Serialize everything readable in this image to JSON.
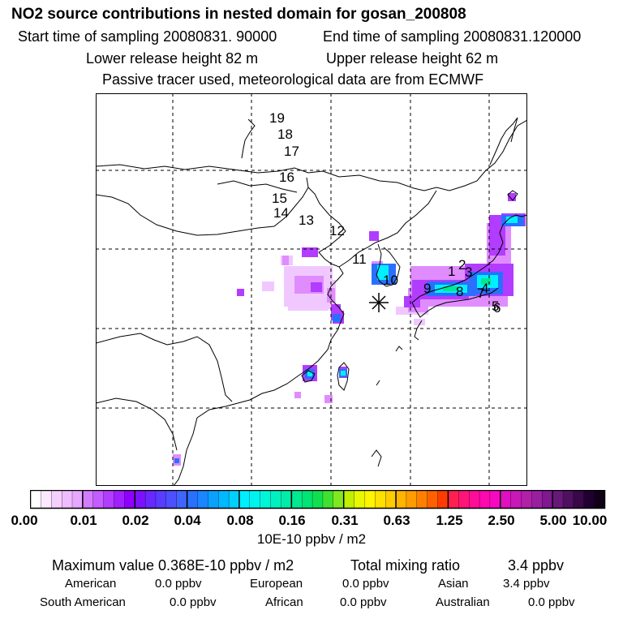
{
  "header": {
    "title": "NO2 source contributions in nested domain for gosan_200808",
    "start_time": "Start time of sampling 20080831. 90000",
    "end_time": "End time of sampling 20080831.120000",
    "lower_release": "Lower release height   82 m",
    "upper_release": "Upper release height   62 m",
    "tracer_note": "Passive tracer used, meteorological data are from ECMWF"
  },
  "map": {
    "track_labels": [
      "1",
      "2",
      "3",
      "4",
      "5",
      "6",
      "7",
      "8",
      "9",
      "10",
      "11",
      "12",
      "13",
      "14",
      "15",
      "16",
      "17",
      "18",
      "19"
    ],
    "receptor_marker": "asterisk-icon"
  },
  "colorbar": {
    "ticks": [
      "0.00",
      "0.01",
      "0.02",
      "0.04",
      "0.08",
      "0.16",
      "0.31",
      "0.63",
      "1.25",
      "2.50",
      "5.00",
      "10.00"
    ],
    "units": "10E-10 ppbv / m2"
  },
  "stats": {
    "max_value": "Maximum value  0.368E-10 ppbv / m2",
    "total_mixing": "Total mixing ratio",
    "total_value": "3.4 ppbv",
    "regions": [
      {
        "name": "American",
        "value": "0.0 ppbv"
      },
      {
        "name": "European",
        "value": "0.0 ppbv"
      },
      {
        "name": "Asian",
        "value": "3.4 ppbv"
      },
      {
        "name": "South American",
        "value": "0.0 ppbv"
      },
      {
        "name": "African",
        "value": "0.0 ppbv"
      },
      {
        "name": "Australian",
        "value": "0.0 ppbv"
      }
    ]
  },
  "colors": {
    "coast": "#000000",
    "grid": "#000000",
    "plume_pale": "#f0c8ff",
    "plume_light": "#e08cff",
    "plume_violet": "#b23cff",
    "plume_blue": "#2a70ff",
    "plume_cyan": "#00f0ff",
    "plume_green": "#00e890"
  }
}
